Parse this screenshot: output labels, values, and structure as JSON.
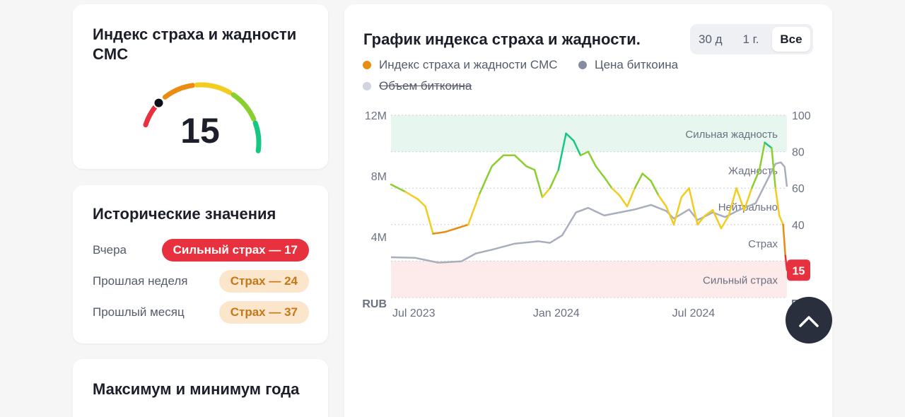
{
  "gauge": {
    "title": "Индекс страха и жадности CMC",
    "value": 15,
    "value_text": "15",
    "segment_colors": [
      "#e8313f",
      "#ea8b12",
      "#f2cc21",
      "#8bce2f",
      "#16c784"
    ]
  },
  "historical": {
    "title": "Исторические значения",
    "rows": [
      {
        "label": "Вчера",
        "badge": "Сильный страх — 17",
        "value": 17,
        "color": "#e8313f"
      },
      {
        "label": "Прошлая неделя",
        "badge": "Страх — 24",
        "value": 24,
        "color": "#c77618"
      },
      {
        "label": "Прошлый месяц",
        "badge": "Страх — 37",
        "value": 37,
        "color": "#c77618"
      }
    ]
  },
  "year_card": {
    "title": "Максимум и минимум года"
  },
  "chart": {
    "title": "График индекса страха и жадности.",
    "ranges": [
      "30 д",
      "1 г.",
      "Все"
    ],
    "active_range": "Все",
    "legend": [
      {
        "label": "Индекс страха и жадности CMC",
        "color": "#ea8b12",
        "enabled": true
      },
      {
        "label": "Цена биткоина",
        "color": "#858ca2",
        "enabled": true
      },
      {
        "label": "Объем биткоина",
        "color": "#cfd4de",
        "enabled": false
      }
    ],
    "current_value_text": "15",
    "scroll_top": "scroll-to-top-icon"
  },
  "chart_data": {
    "type": "line",
    "x_ticks": [
      "Jul 2023",
      "Jan 2024",
      "Jul 2024"
    ],
    "x_range": [
      "2023-07-01",
      "2024-11-30"
    ],
    "left_axis": {
      "label": "RUB",
      "ticks": [
        "12M",
        "8M",
        "4M"
      ],
      "tick_values": [
        12000000,
        8000000,
        4000000
      ],
      "range": [
        0,
        12000000
      ]
    },
    "right_axis": {
      "label": "F&G",
      "ticks": [
        "100",
        "80",
        "60",
        "40"
      ],
      "tick_values": [
        100,
        80,
        60,
        40
      ],
      "range": [
        0,
        100
      ]
    },
    "zones": [
      {
        "label": "Сильная жадность",
        "from": 80,
        "to": 100,
        "color": "#e7f7f0"
      },
      {
        "label": "Жадность",
        "from": 60,
        "to": 80
      },
      {
        "label": "Нейтрально",
        "from": 40,
        "to": 60
      },
      {
        "label": "Страх",
        "from": 20,
        "to": 40
      },
      {
        "label": "Сильный страх",
        "from": 0,
        "to": 20,
        "color": "#fdeaea"
      }
    ],
    "series": [
      {
        "name": "Индекс страха и жадности CMC",
        "axis": "right",
        "points": [
          [
            "2023-07-01",
            62
          ],
          [
            "2023-07-20",
            58
          ],
          [
            "2023-08-05",
            54
          ],
          [
            "2023-08-15",
            50
          ],
          [
            "2023-08-25",
            35
          ],
          [
            "2023-09-10",
            36
          ],
          [
            "2023-09-25",
            38
          ],
          [
            "2023-10-10",
            40
          ],
          [
            "2023-10-25",
            57
          ],
          [
            "2023-11-10",
            72
          ],
          [
            "2023-11-25",
            78
          ],
          [
            "2023-12-10",
            78
          ],
          [
            "2023-12-25",
            72
          ],
          [
            "2024-01-05",
            70
          ],
          [
            "2024-01-15",
            55
          ],
          [
            "2024-01-25",
            60
          ],
          [
            "2024-02-05",
            70
          ],
          [
            "2024-02-15",
            90
          ],
          [
            "2024-02-25",
            86
          ],
          [
            "2024-03-05",
            78
          ],
          [
            "2024-03-15",
            80
          ],
          [
            "2024-03-25",
            72
          ],
          [
            "2024-04-05",
            66
          ],
          [
            "2024-04-15",
            60
          ],
          [
            "2024-04-25",
            56
          ],
          [
            "2024-05-05",
            50
          ],
          [
            "2024-05-15",
            60
          ],
          [
            "2024-05-25",
            68
          ],
          [
            "2024-06-05",
            64
          ],
          [
            "2024-06-15",
            56
          ],
          [
            "2024-06-25",
            50
          ],
          [
            "2024-07-05",
            40
          ],
          [
            "2024-07-15",
            55
          ],
          [
            "2024-07-25",
            60
          ],
          [
            "2024-08-05",
            40
          ],
          [
            "2024-08-15",
            45
          ],
          [
            "2024-08-25",
            48
          ],
          [
            "2024-09-05",
            38
          ],
          [
            "2024-09-15",
            45
          ],
          [
            "2024-09-25",
            60
          ],
          [
            "2024-10-05",
            48
          ],
          [
            "2024-10-15",
            60
          ],
          [
            "2024-10-25",
            70
          ],
          [
            "2024-11-01",
            85
          ],
          [
            "2024-11-10",
            82
          ],
          [
            "2024-11-15",
            60
          ],
          [
            "2024-11-20",
            45
          ],
          [
            "2024-11-25",
            40
          ],
          [
            "2024-11-28",
            23
          ],
          [
            "2024-11-30",
            15
          ]
        ]
      },
      {
        "name": "Цена биткоина",
        "axis": "left",
        "points": [
          [
            "2023-07-01",
            2650000
          ],
          [
            "2023-08-01",
            2620000
          ],
          [
            "2023-09-01",
            2300000
          ],
          [
            "2023-10-01",
            2380000
          ],
          [
            "2023-10-20",
            2900000
          ],
          [
            "2023-11-10",
            3150000
          ],
          [
            "2023-12-10",
            3550000
          ],
          [
            "2024-01-10",
            3700000
          ],
          [
            "2024-01-25",
            3600000
          ],
          [
            "2024-02-10",
            4100000
          ],
          [
            "2024-02-28",
            5600000
          ],
          [
            "2024-03-15",
            5900000
          ],
          [
            "2024-04-05",
            5400000
          ],
          [
            "2024-04-25",
            5600000
          ],
          [
            "2024-05-15",
            5800000
          ],
          [
            "2024-06-05",
            6100000
          ],
          [
            "2024-06-25",
            5700000
          ],
          [
            "2024-07-05",
            5200000
          ],
          [
            "2024-07-25",
            5800000
          ],
          [
            "2024-08-05",
            5100000
          ],
          [
            "2024-08-25",
            5600000
          ],
          [
            "2024-09-10",
            5300000
          ],
          [
            "2024-09-30",
            5800000
          ],
          [
            "2024-10-20",
            6200000
          ],
          [
            "2024-11-05",
            7800000
          ],
          [
            "2024-11-15",
            8800000
          ],
          [
            "2024-11-22",
            8900000
          ],
          [
            "2024-11-27",
            8600000
          ],
          [
            "2024-11-30",
            7300000
          ]
        ]
      }
    ],
    "grid": true,
    "legend_position": "top"
  }
}
